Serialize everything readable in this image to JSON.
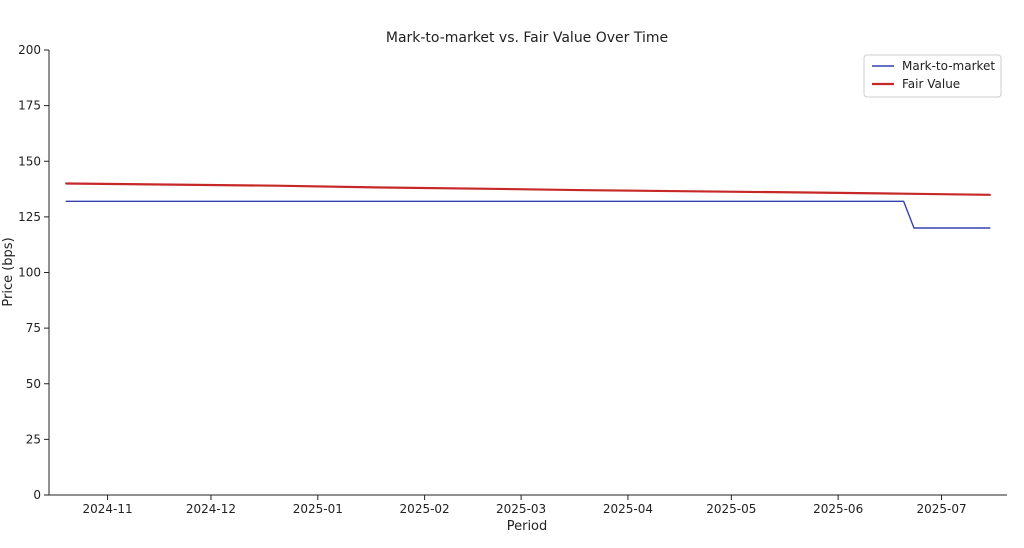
{
  "chart_data": {
    "type": "line",
    "title": "Mark-to-market vs. Fair Value Over Time",
    "xlabel": "Period",
    "ylabel": "Price (bps)",
    "ylim": [
      0,
      200
    ],
    "xlim": [
      "2024-10-15",
      "2025-07-20"
    ],
    "yticks": [
      0,
      25,
      50,
      75,
      100,
      125,
      150,
      175,
      200
    ],
    "xticks": [
      "2024-11",
      "2024-12",
      "2025-01",
      "2025-02",
      "2025-03",
      "2025-04",
      "2025-05",
      "2025-06",
      "2025-07"
    ],
    "grid": false,
    "legend_position": "top-right",
    "series": [
      {
        "name": "Mark-to-market",
        "color": "#3440b0",
        "points": [
          {
            "x": "2024-10-20",
            "y": 132
          },
          {
            "x": "2025-06-20",
            "y": 132
          },
          {
            "x": "2025-06-23",
            "y": 120
          },
          {
            "x": "2025-07-15",
            "y": 120
          }
        ]
      },
      {
        "name": "Fair Value",
        "color": "#c62828",
        "points": [
          {
            "x": "2024-10-20",
            "y": 140
          },
          {
            "x": "2024-11-20",
            "y": 139.5
          },
          {
            "x": "2024-12-20",
            "y": 139
          },
          {
            "x": "2025-01-20",
            "y": 138.2
          },
          {
            "x": "2025-02-20",
            "y": 137.6
          },
          {
            "x": "2025-03-20",
            "y": 137
          },
          {
            "x": "2025-04-20",
            "y": 136.5
          },
          {
            "x": "2025-05-20",
            "y": 136
          },
          {
            "x": "2025-06-20",
            "y": 135.4
          },
          {
            "x": "2025-07-15",
            "y": 134.9
          }
        ]
      }
    ]
  }
}
